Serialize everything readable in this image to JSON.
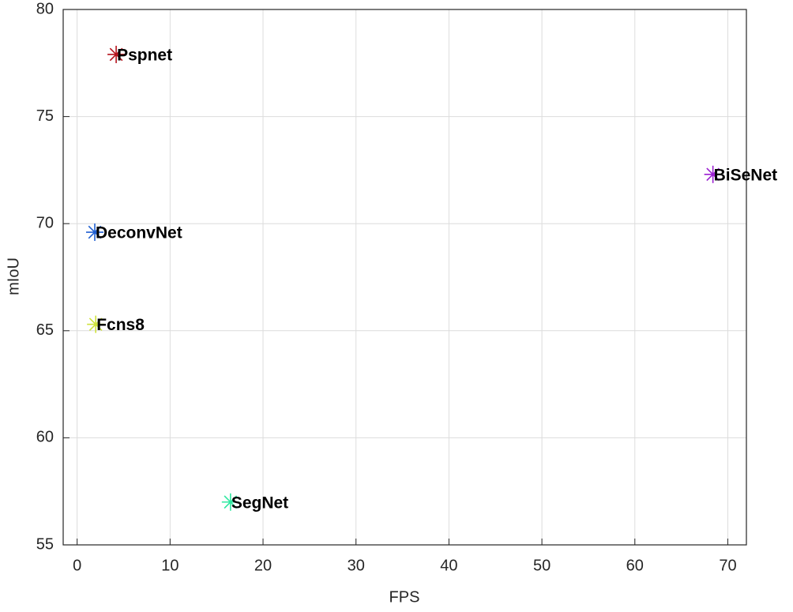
{
  "chart_data": {
    "type": "scatter",
    "x_label": "FPS",
    "y_label": "mIoU",
    "xlim": [
      -1.5,
      72
    ],
    "ylim": [
      55,
      80
    ],
    "xticks": [
      0,
      10,
      20,
      30,
      40,
      50,
      60,
      70
    ],
    "yticks": [
      55,
      60,
      65,
      70,
      75,
      80
    ],
    "grid": true,
    "series": [
      {
        "name": "Pspnet",
        "color": "#b5121b",
        "x": [
          4.2
        ],
        "values": [
          77.9
        ]
      },
      {
        "name": "BiSeNet",
        "color": "#9b1fd1",
        "x": [
          68.4
        ],
        "values": [
          72.3
        ]
      },
      {
        "name": "DeconvNet",
        "color": "#1f5fd1",
        "x": [
          1.9
        ],
        "values": [
          69.6
        ]
      },
      {
        "name": "Fcns8",
        "color": "#cfe23c",
        "x": [
          2.0
        ],
        "values": [
          65.3
        ]
      },
      {
        "name": "SegNet",
        "color": "#2ee8a0",
        "x": [
          16.5
        ],
        "values": [
          57.0
        ]
      }
    ]
  }
}
